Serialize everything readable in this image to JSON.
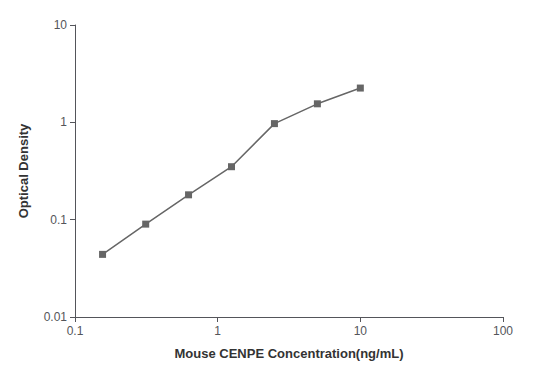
{
  "chart_data": {
    "type": "line",
    "xlabel": "Mouse CENPE Concentration(ng/mL)",
    "ylabel": "Optical Density",
    "x": [
      0.156,
      0.313,
      0.625,
      1.25,
      2.5,
      5.0,
      10.0
    ],
    "values": [
      0.044,
      0.09,
      0.18,
      0.35,
      0.97,
      1.55,
      2.25
    ],
    "color": "#666666",
    "marker": "square",
    "log": true,
    "xlim": [
      0.1,
      100
    ],
    "ylim": [
      0.01,
      10
    ],
    "xticks": [
      0.1,
      1,
      10,
      100
    ],
    "yticks": [
      0.01,
      0.1,
      1,
      10
    ],
    "grid": false
  }
}
